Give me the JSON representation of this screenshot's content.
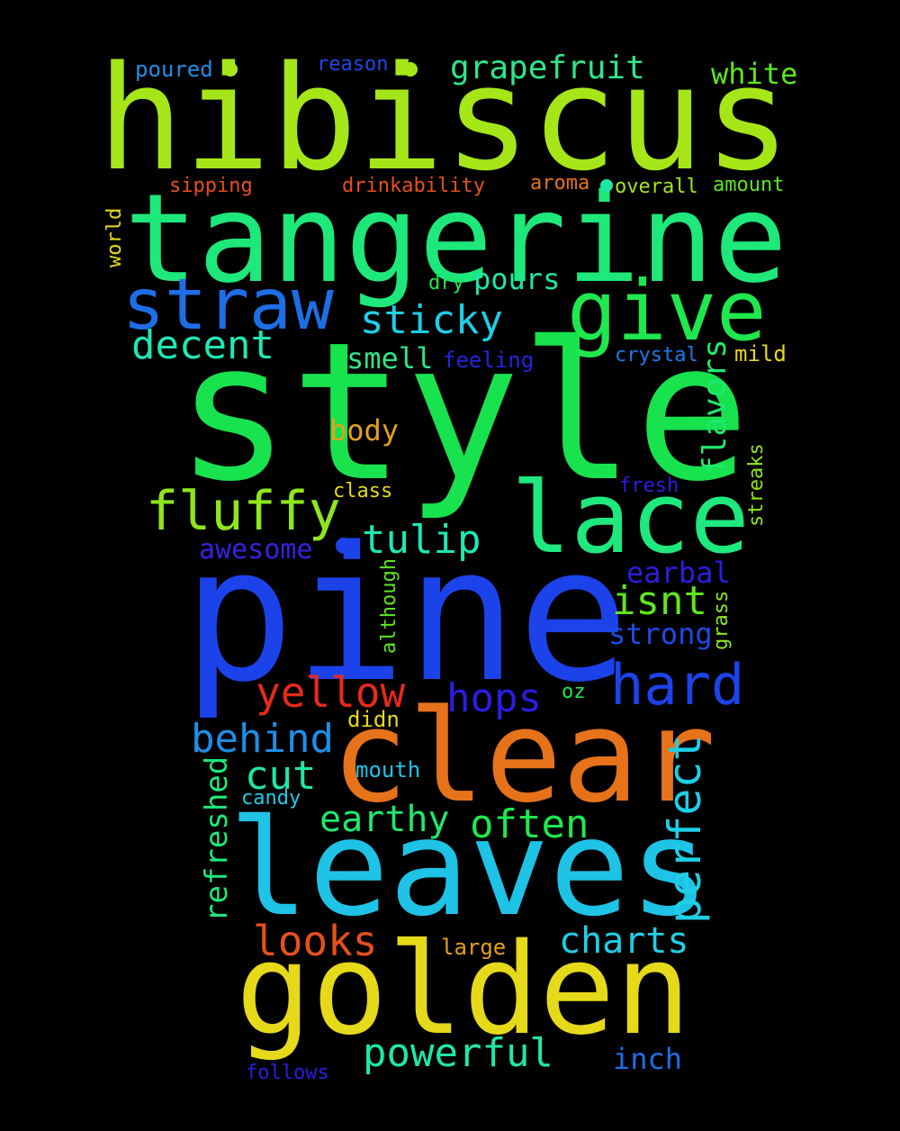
{
  "background": "#000000",
  "words": [
    {
      "text": "hibiscus",
      "color": "#a6e618"
    },
    {
      "text": "tangerine",
      "color": "#1ee87a"
    },
    {
      "text": "style",
      "color": "#18e24e"
    },
    {
      "text": "pine",
      "color": "#1c43ea"
    },
    {
      "text": "clear",
      "color": "#e6731a"
    },
    {
      "text": "leaves",
      "color": "#1ec3e6"
    },
    {
      "text": "golden",
      "color": "#e6d91a"
    },
    {
      "text": "straw",
      "color": "#1e6ee6"
    },
    {
      "text": "give",
      "color": "#1ee84e"
    },
    {
      "text": "lace",
      "color": "#1ee87e"
    },
    {
      "text": "fluffy",
      "color": "#8ee61a"
    },
    {
      "text": "sticky",
      "color": "#1ecfe6"
    },
    {
      "text": "decent",
      "color": "#1ee8b4"
    },
    {
      "text": "grapefruit",
      "color": "#2ee68a"
    },
    {
      "text": "white",
      "color": "#5ee61e"
    },
    {
      "text": "pours",
      "color": "#1ee8a8"
    },
    {
      "text": "smell",
      "color": "#2ee68a"
    },
    {
      "text": "feeling",
      "color": "#2424e0"
    },
    {
      "text": "crystal",
      "color": "#1e7ae6"
    },
    {
      "text": "mild",
      "color": "#e6d91a"
    },
    {
      "text": "body",
      "color": "#e6a01a"
    },
    {
      "text": "flavors",
      "color": "#1ee86e"
    },
    {
      "text": "tulip",
      "color": "#1ee8b4"
    },
    {
      "text": "awesome",
      "color": "#3a20e0"
    },
    {
      "text": "class",
      "color": "#e6d91a"
    },
    {
      "text": "fresh",
      "color": "#2a1ee0"
    },
    {
      "text": "streaks",
      "color": "#8ee61a"
    },
    {
      "text": "earbal",
      "color": "#2a1ee0"
    },
    {
      "text": "isnt",
      "color": "#5ee61e"
    },
    {
      "text": "strong",
      "color": "#1e4ae6"
    },
    {
      "text": "grass",
      "color": "#8ee61a"
    },
    {
      "text": "although",
      "color": "#5ee61e"
    },
    {
      "text": "hard",
      "color": "#1c43ea"
    },
    {
      "text": "yellow",
      "color": "#e62a1a"
    },
    {
      "text": "hops",
      "color": "#2a1ee0"
    },
    {
      "text": "oz",
      "color": "#1ee84e"
    },
    {
      "text": "didn",
      "color": "#e6d91a"
    },
    {
      "text": "behind",
      "color": "#1e8ee6"
    },
    {
      "text": "cut",
      "color": "#1ee8a8"
    },
    {
      "text": "mouth",
      "color": "#1ec3e6"
    },
    {
      "text": "perfect",
      "color": "#1ecfe6"
    },
    {
      "text": "candy",
      "color": "#1ecfe6"
    },
    {
      "text": "refreshed",
      "color": "#1ee87a"
    },
    {
      "text": "earthy",
      "color": "#1ee86e"
    },
    {
      "text": "often",
      "color": "#1ee84e"
    },
    {
      "text": "looks",
      "color": "#e6501a"
    },
    {
      "text": "charts",
      "color": "#1ecfe6"
    },
    {
      "text": "large",
      "color": "#e6a01a"
    },
    {
      "text": "powerful",
      "color": "#1ee8a8"
    },
    {
      "text": "inch",
      "color": "#1e6ee6"
    },
    {
      "text": "follows",
      "color": "#2a1ee0"
    },
    {
      "text": "poured",
      "color": "#1e8ee6"
    },
    {
      "text": "reason",
      "color": "#1e4ae6"
    },
    {
      "text": "sipping",
      "color": "#e6501a"
    },
    {
      "text": "drinkability",
      "color": "#e6501a"
    },
    {
      "text": "aroma",
      "color": "#e6731a"
    },
    {
      "text": "overall",
      "color": "#a6e618"
    },
    {
      "text": "amount",
      "color": "#5ee61e"
    },
    {
      "text": "world",
      "color": "#e6d91a"
    },
    {
      "text": "dry",
      "color": "#1ee84e"
    }
  ],
  "dots": [
    {
      "color": "#a6e618"
    },
    {
      "color": "#a6e618"
    },
    {
      "color": "#1ee8a8"
    },
    {
      "color": "#1c43ea"
    }
  ]
}
